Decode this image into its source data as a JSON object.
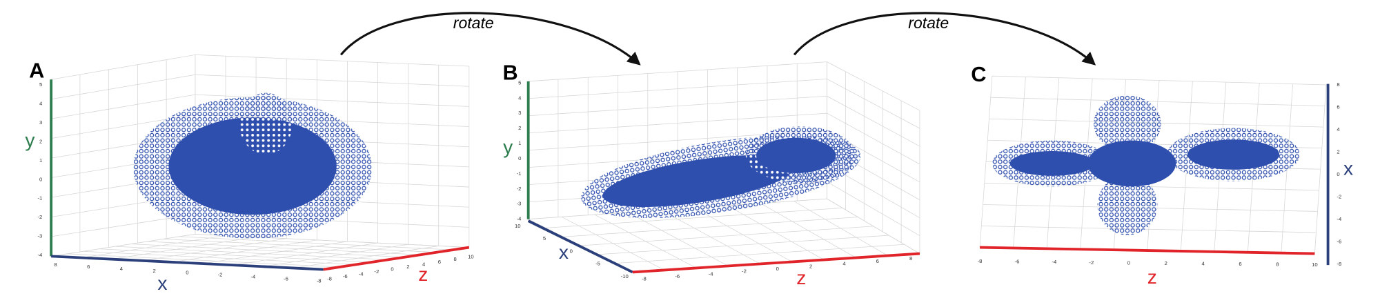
{
  "annotations": [
    "rotate",
    "rotate"
  ],
  "panels": [
    {
      "label": "A",
      "axes": {
        "y": {
          "label": "y",
          "ticks": [
            5,
            4,
            3,
            2,
            1,
            0,
            -1,
            -2,
            -3,
            -4
          ]
        },
        "x": {
          "label": "x",
          "ticks": [
            8,
            6,
            4,
            2,
            0,
            -2,
            -4,
            -6,
            -8
          ]
        },
        "z": {
          "label": "z",
          "ticks": [
            -8,
            -6,
            -4,
            -2,
            0,
            2,
            4,
            6,
            8,
            10
          ]
        }
      }
    },
    {
      "label": "B",
      "axes": {
        "y": {
          "label": "y",
          "ticks": [
            5,
            4,
            3,
            2,
            1,
            0,
            -1,
            -2,
            -3,
            -4
          ]
        },
        "x": {
          "label": "x",
          "ticks": [
            10,
            5,
            0,
            -5,
            -10
          ]
        },
        "z": {
          "label": "z",
          "ticks": [
            -8,
            -6,
            -4,
            -2,
            0,
            2,
            4,
            6,
            8
          ]
        }
      }
    },
    {
      "label": "C",
      "axes": {
        "x": {
          "label": "x",
          "ticks": [
            8,
            6,
            4,
            2,
            0,
            -2,
            -4,
            -6,
            -8
          ]
        },
        "z": {
          "label": "z",
          "ticks": [
            -8,
            -6,
            -4,
            -2,
            0,
            2,
            4,
            6,
            8,
            10
          ]
        }
      }
    }
  ]
}
